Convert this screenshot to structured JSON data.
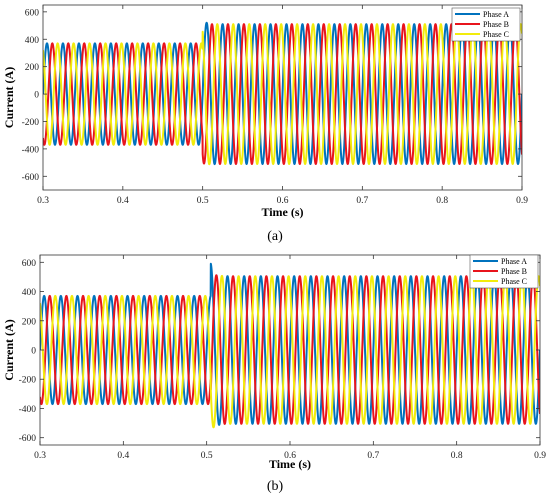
{
  "colors": {
    "phase_a": "#0072BD",
    "phase_b": "#E8141C",
    "phase_c": "#F2EC0C",
    "axes": "#333333"
  },
  "chart_data": [
    {
      "type": "line",
      "panel_label": "(a)",
      "xlabel": "Time (s)",
      "ylabel": "Current (A)",
      "xlim": [
        0.3,
        0.9
      ],
      "ylim": [
        -700,
        650
      ],
      "xticks": [
        0.3,
        0.4,
        0.5,
        0.6,
        0.7,
        0.8,
        0.9
      ],
      "yticks": [
        -600,
        -400,
        -200,
        0,
        200,
        400,
        600
      ],
      "grid": false,
      "legend_position": "top-right",
      "frequency_hz": 50,
      "step_time_s": 0.5,
      "series": [
        {
          "name": "Phase A",
          "color": "#0072BD",
          "phase_deg": 0,
          "amplitude_before": 370,
          "amplitude_after": 510,
          "transient_peak": 545
        },
        {
          "name": "Phase B",
          "color": "#E8141C",
          "phase_deg": -120,
          "amplitude_before": 370,
          "amplitude_after": 510,
          "transient_peak": 505
        },
        {
          "name": "Phase C",
          "color": "#F2EC0C",
          "phase_deg": 120,
          "amplitude_before": 370,
          "amplitude_after": 510,
          "transient_peak": 525
        }
      ]
    },
    {
      "type": "line",
      "panel_label": "(b)",
      "xlabel": "Time (s)",
      "ylabel": "Current (A)",
      "xlim": [
        0.3,
        0.9
      ],
      "ylim": [
        -650,
        650
      ],
      "xticks": [
        0.3,
        0.4,
        0.5,
        0.6,
        0.7,
        0.8,
        0.9
      ],
      "yticks": [
        -600,
        -400,
        -200,
        0,
        200,
        400,
        600
      ],
      "grid": false,
      "legend_position": "top-right",
      "frequency_hz": 50,
      "step_time_s": 0.505,
      "series": [
        {
          "name": "Phase A",
          "color": "#0072BD",
          "phase_deg": 0,
          "amplitude_before": 370,
          "amplitude_after": 505,
          "transient_peak": 590
        },
        {
          "name": "Phase B",
          "color": "#E8141C",
          "phase_deg": -120,
          "amplitude_before": 370,
          "amplitude_after": 505,
          "transient_peak": 540
        },
        {
          "name": "Phase C",
          "color": "#F2EC0C",
          "phase_deg": 120,
          "amplitude_before": 370,
          "amplitude_after": 505,
          "transient_peak": 560
        }
      ]
    }
  ]
}
